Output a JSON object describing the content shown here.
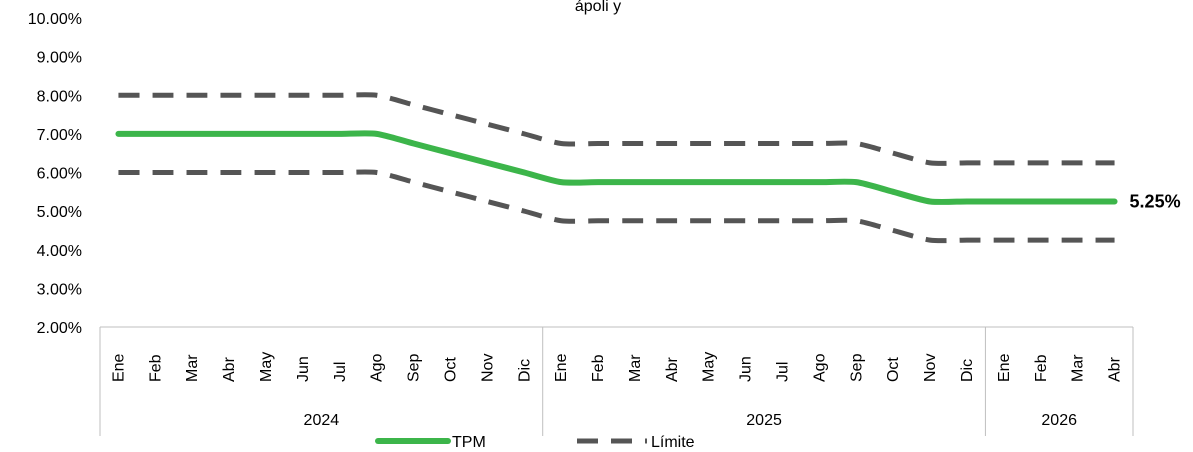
{
  "chart_data": {
    "type": "line",
    "title": "",
    "title_visible_fragment": "ápoli y",
    "ylim": [
      2,
      10
    ],
    "yticks": [
      "2.00%",
      "3.00%",
      "4.00%",
      "5.00%",
      "6.00%",
      "7.00%",
      "8.00%",
      "9.00%",
      "10.00%"
    ],
    "categories": [
      "Ene",
      "Feb",
      "Mar",
      "Abr",
      "May",
      "Jun",
      "Jul",
      "Ago",
      "Sep",
      "Oct",
      "Nov",
      "Dic",
      "Ene",
      "Feb",
      "Mar",
      "Abr",
      "May",
      "Jun",
      "Jul",
      "Ago",
      "Sep",
      "Oct",
      "Nov",
      "Dic",
      "Ene",
      "Feb",
      "Mar",
      "Abr"
    ],
    "year_groups": [
      {
        "label": "2024",
        "count": 12
      },
      {
        "label": "2025",
        "count": 12
      },
      {
        "label": "2026",
        "count": 4
      }
    ],
    "series": [
      {
        "name": "TPM",
        "color": "#3cb54a",
        "style": "solid",
        "values": [
          7.0,
          7.0,
          7.0,
          7.0,
          7.0,
          7.0,
          7.0,
          7.0,
          6.75,
          6.5,
          6.25,
          6.0,
          5.75,
          5.75,
          5.75,
          5.75,
          5.75,
          5.75,
          5.75,
          5.75,
          5.75,
          5.5,
          5.25,
          5.25,
          5.25,
          5.25,
          5.25,
          5.25
        ]
      },
      {
        "name": "Límite",
        "color": "#555555",
        "style": "dashed",
        "values": [
          8.0,
          8.0,
          8.0,
          8.0,
          8.0,
          8.0,
          8.0,
          8.0,
          7.75,
          7.5,
          7.25,
          7.0,
          6.75,
          6.75,
          6.75,
          6.75,
          6.75,
          6.75,
          6.75,
          6.75,
          6.75,
          6.5,
          6.25,
          6.25,
          6.25,
          6.25,
          6.25,
          6.25
        ]
      },
      {
        "name": "Límite",
        "color": "#555555",
        "style": "dashed",
        "legend": false,
        "values": [
          6.0,
          6.0,
          6.0,
          6.0,
          6.0,
          6.0,
          6.0,
          6.0,
          5.75,
          5.5,
          5.25,
          5.0,
          4.75,
          4.75,
          4.75,
          4.75,
          4.75,
          4.75,
          4.75,
          4.75,
          4.75,
          4.5,
          4.25,
          4.25,
          4.25,
          4.25,
          4.25,
          4.25
        ]
      }
    ],
    "last_value_label": "5.25%",
    "grid": false,
    "legend_position": "bottom"
  }
}
